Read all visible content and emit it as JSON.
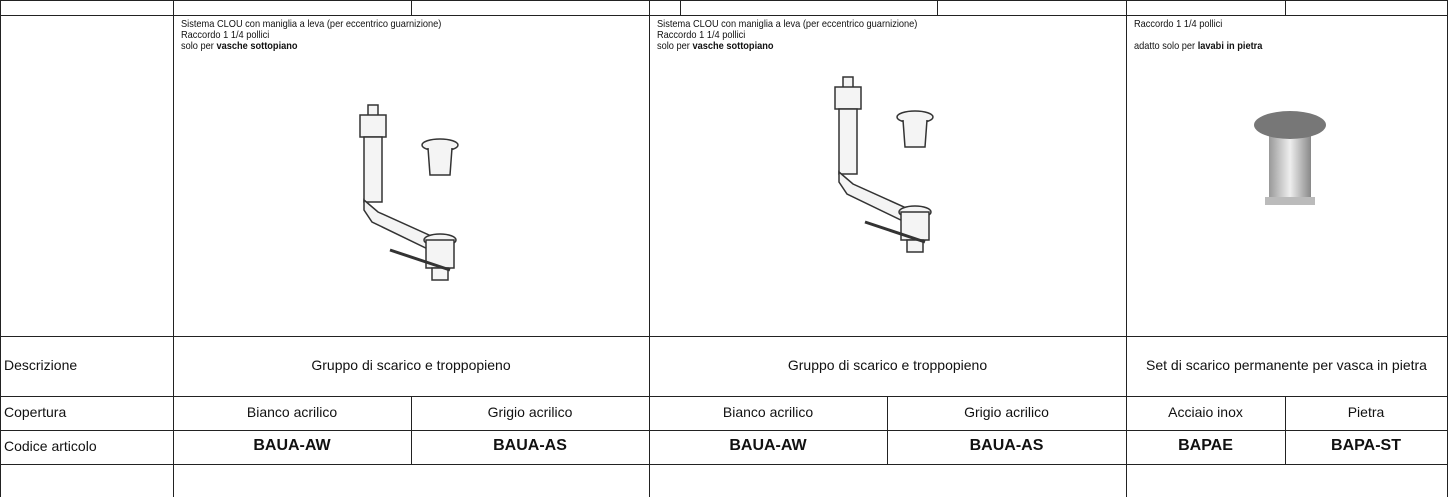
{
  "products": [
    {
      "lines": [
        "Sistema CLOU con maniglia a leva (per eccentrico guarnizione)",
        "Raccordo 1 1/4 pollici"
      ],
      "note_prefix": "solo per",
      "note_bold": "vasche sottopiano",
      "description": "Gruppo di scarico e troppopieno",
      "coverings": [
        "Bianco acrilico",
        "Grigio acrilico"
      ],
      "codes": [
        "BAUA-AW",
        "BAUA-AS"
      ]
    },
    {
      "lines": [
        "Sistema CLOU con maniglia a leva (per eccentrico guarnizione)",
        "Raccordo 1 1/4 pollici"
      ],
      "note_prefix": "solo per",
      "note_bold": "vasche sottopiano",
      "description": "Gruppo di scarico e troppopieno",
      "coverings": [
        "Bianco acrilico",
        "Grigio acrilico"
      ],
      "codes": [
        "BAUA-AW",
        "BAUA-AS"
      ]
    },
    {
      "lines": [
        "Raccordo 1 1/4 pollici"
      ],
      "note_prefix": "adatto solo per",
      "note_bold": "lavabi in pietra",
      "description": "Set di scarico permanente per vasca in pietra",
      "coverings": [
        "Acciaio inox",
        "Pietra"
      ],
      "codes": [
        "BAPAE",
        "BAPA-ST"
      ]
    }
  ],
  "row_labels": [
    "Descrizione",
    "Copertura",
    "Codice articolo"
  ]
}
